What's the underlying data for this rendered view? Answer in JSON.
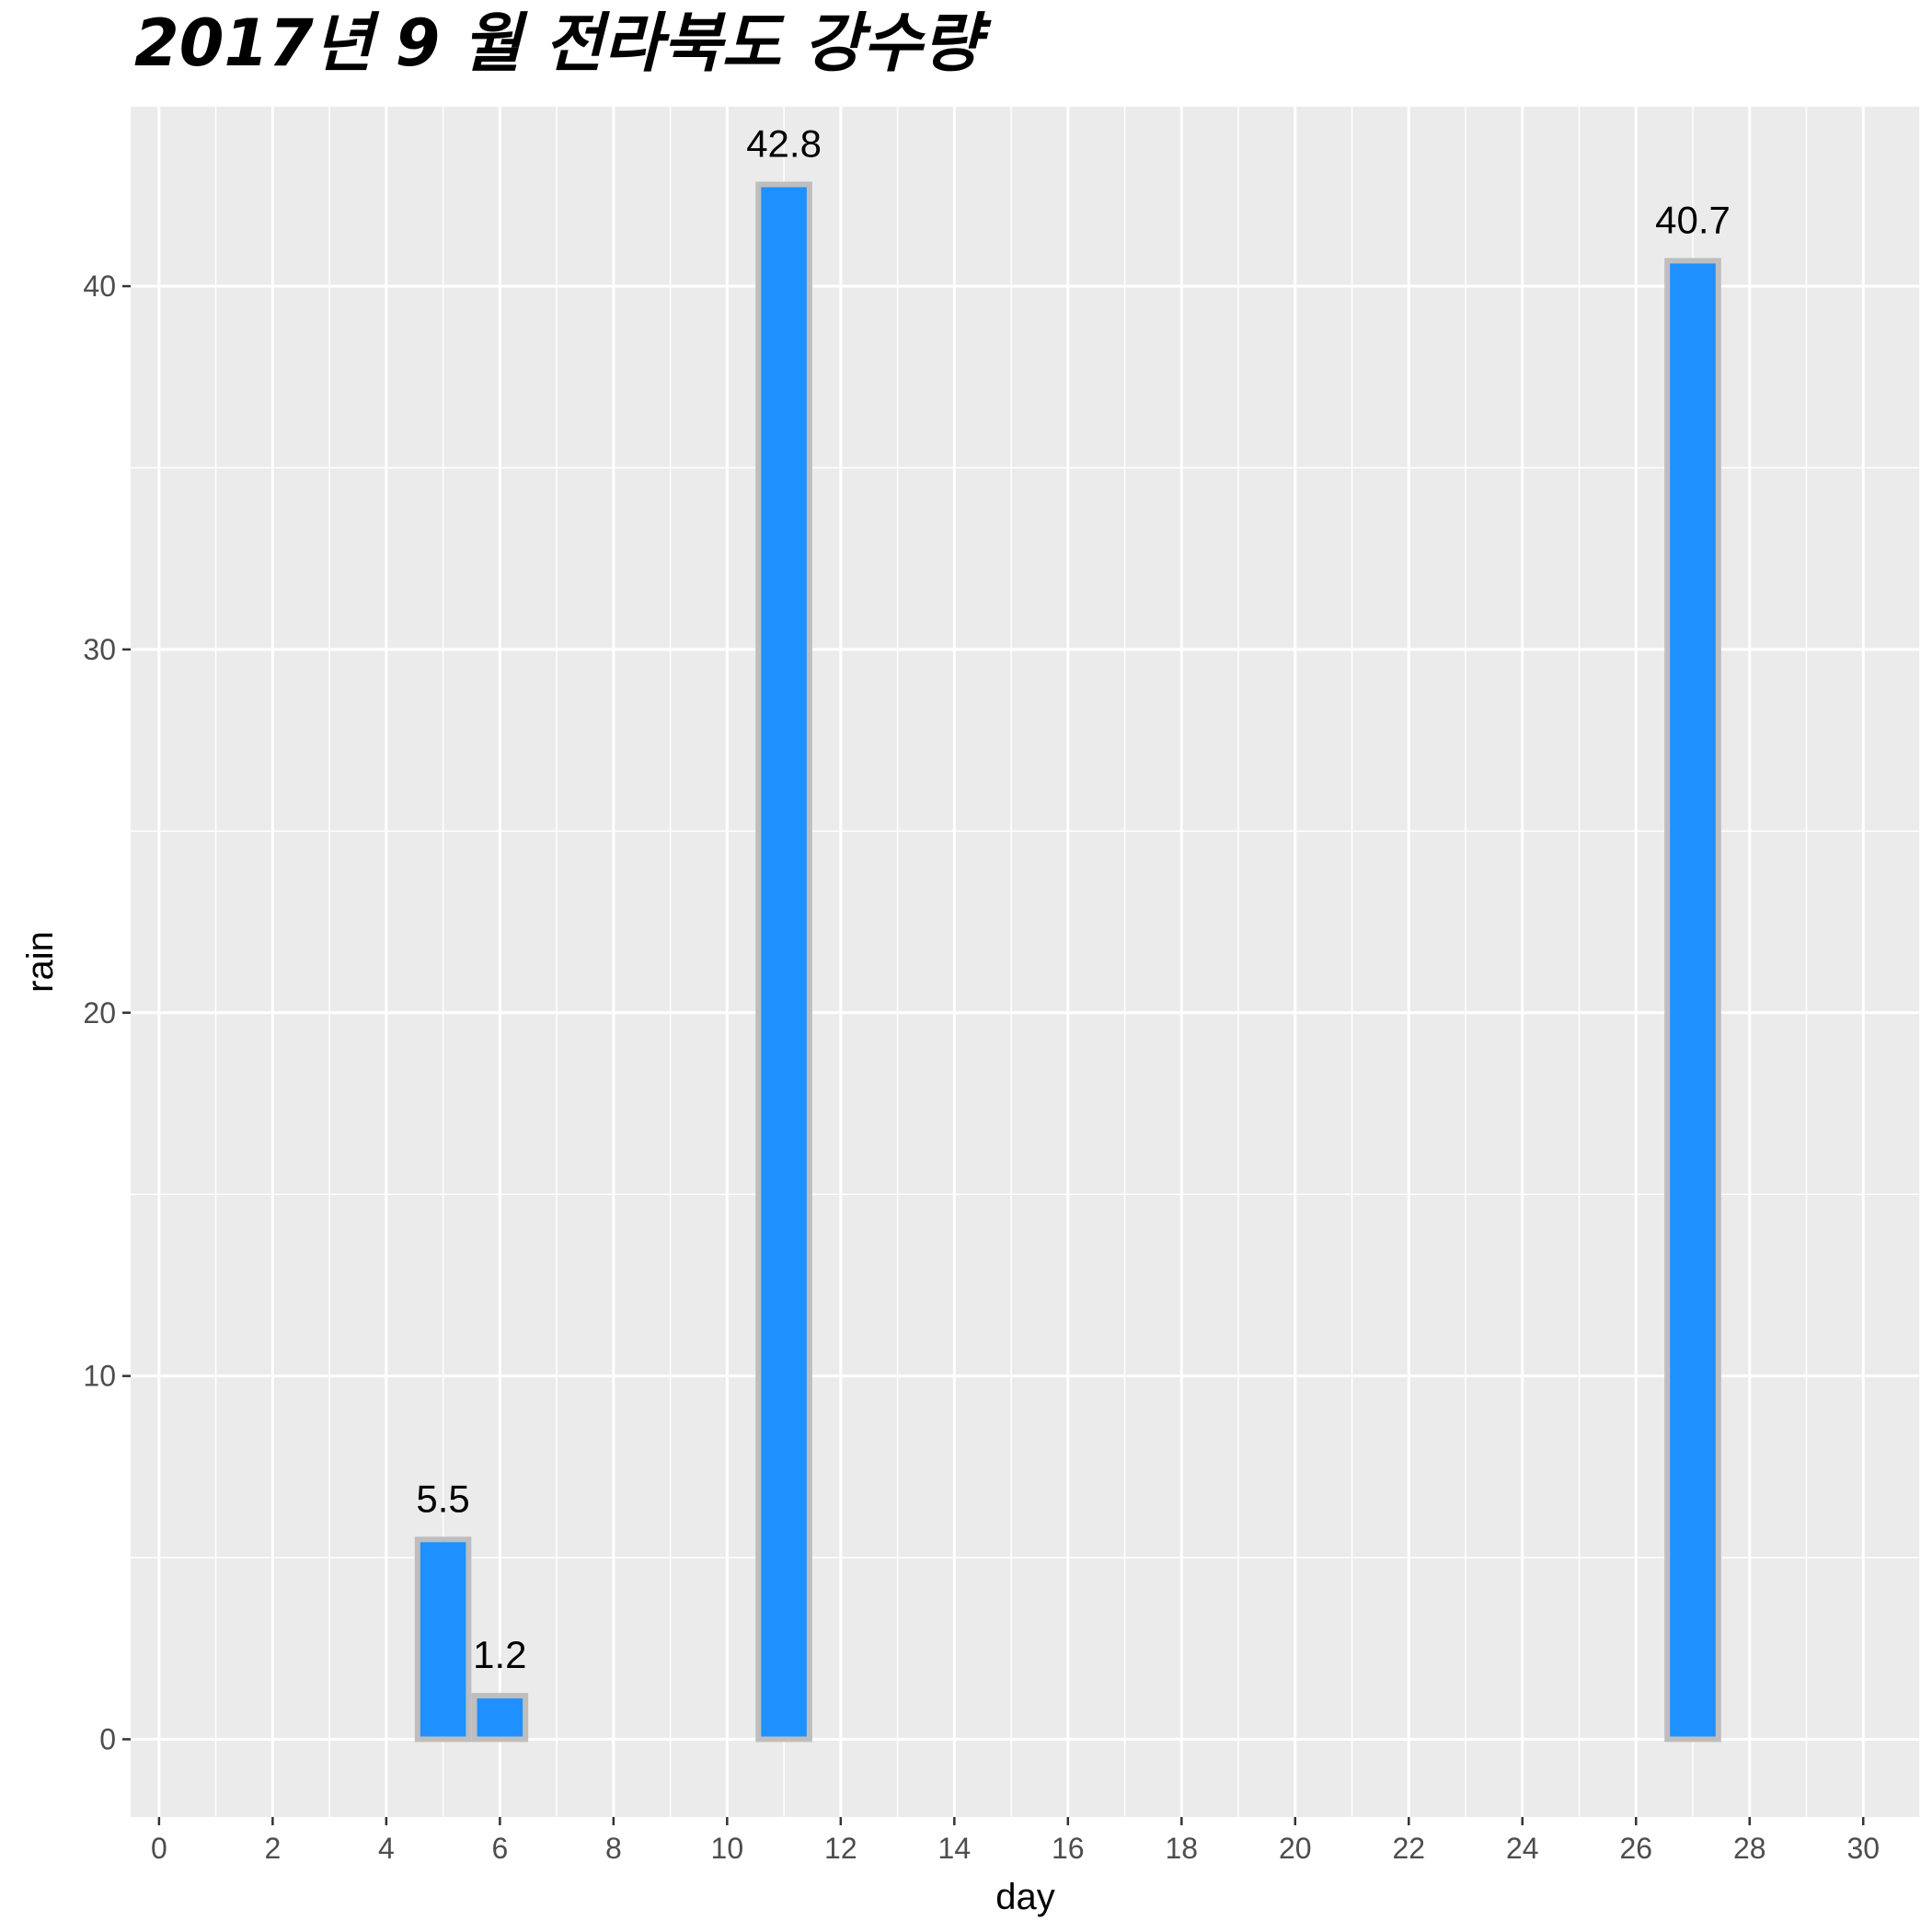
{
  "chart_data": {
    "type": "bar",
    "title": "2017년 9 월 전라북도 강수량",
    "xlabel": "day",
    "ylabel": "rain",
    "x": [
      5,
      6,
      11,
      27
    ],
    "values": [
      5.5,
      1.2,
      42.8,
      40.7
    ],
    "data_labels": [
      "5.5",
      "1.2",
      "42.8",
      "40.7"
    ],
    "xlim": [
      -0.5,
      31
    ],
    "ylim": [
      -2.14,
      44.94
    ],
    "x_ticks": [
      0,
      2,
      4,
      6,
      8,
      10,
      12,
      14,
      16,
      18,
      20,
      22,
      24,
      26,
      28,
      30
    ],
    "x_tick_labels": [
      "0",
      "2",
      "4",
      "6",
      "8",
      "10",
      "12",
      "14",
      "16",
      "18",
      "20",
      "22",
      "24",
      "26",
      "28",
      "30"
    ],
    "y_ticks": [
      0,
      10,
      20,
      30,
      40
    ],
    "y_tick_labels": [
      "0",
      "10",
      "20",
      "30",
      "40"
    ],
    "grid": true,
    "legend": "none",
    "colors": {
      "bar_fill": "#1E90FF",
      "bar_outline": "#BEBEBE",
      "panel_background": "#EBEBEB",
      "grid_line": "#FFFFFF"
    }
  }
}
